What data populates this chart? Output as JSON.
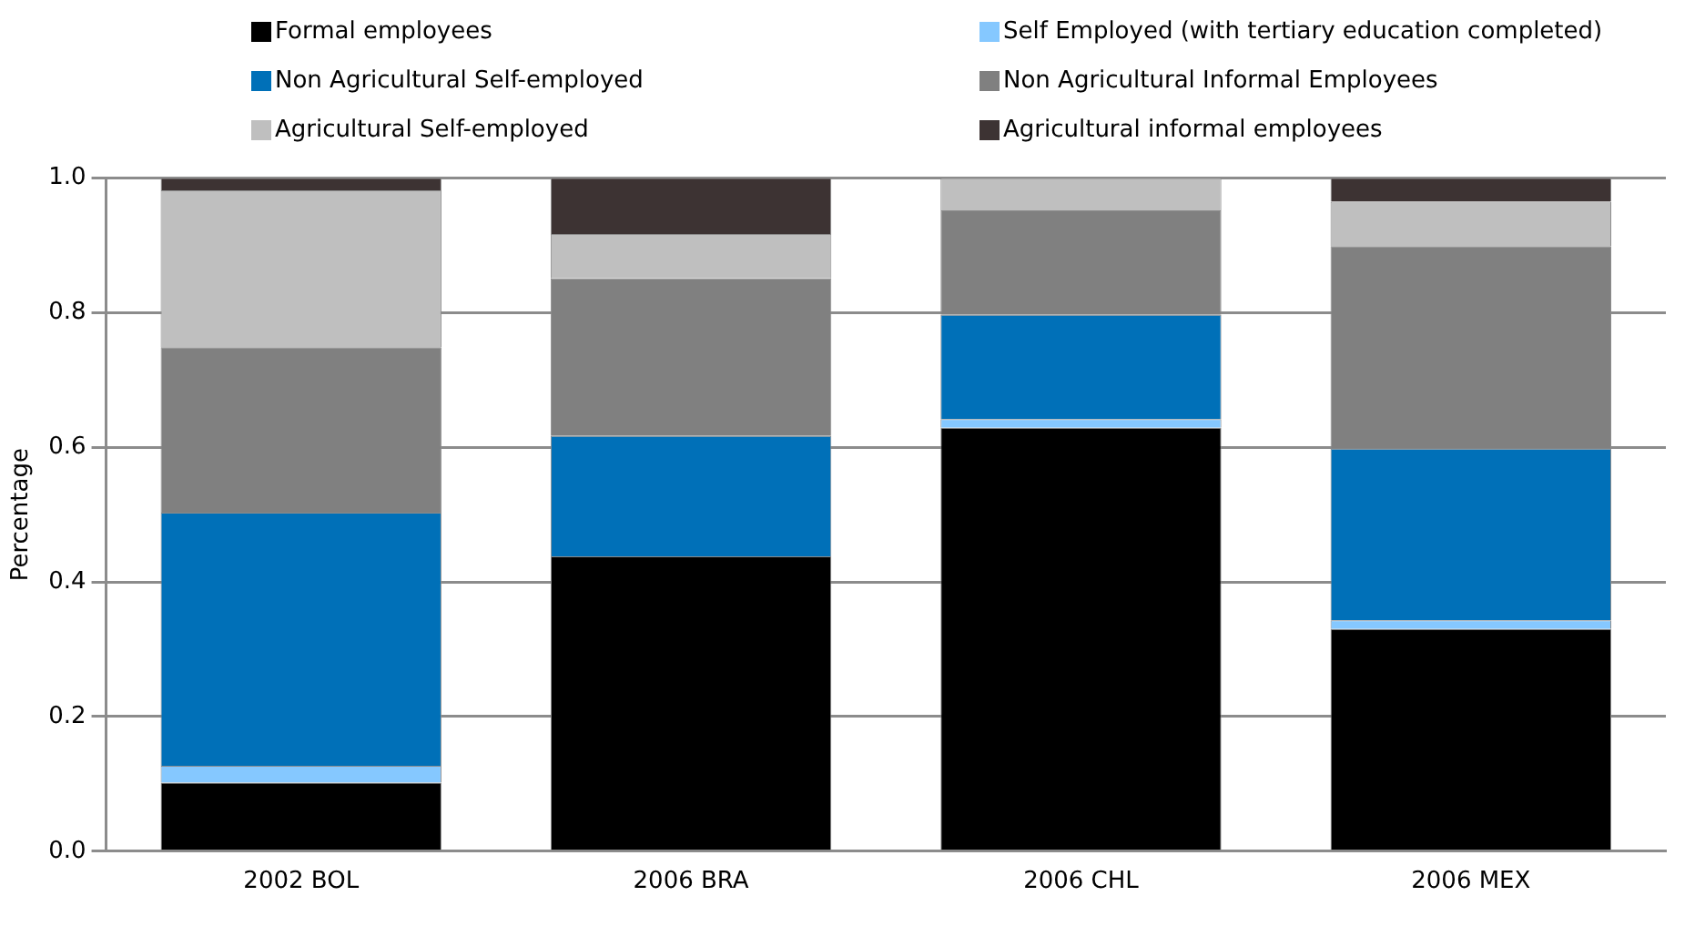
{
  "chart_data": {
    "type": "bar",
    "stacked": true,
    "ylabel": "Percentage",
    "categories": [
      "2002 BOL",
      "2006 BRA",
      "2006 CHL",
      "2006 MEX"
    ],
    "series": [
      {
        "name": "Formal employees",
        "color": "#000000",
        "values": [
          0.102,
          0.438,
          0.629,
          0.33
        ]
      },
      {
        "name": "Self Employed (with tertiary education completed)",
        "color": "#85c8ff",
        "values": [
          0.025,
          0,
          0.013,
          0.013
        ]
      },
      {
        "name": "Non Agricultural Self-employed",
        "color": "#0070b8",
        "values": [
          0.376,
          0.179,
          0.155,
          0.255
        ]
      },
      {
        "name": "Non Agricultural Informal Employees",
        "color": "#808080",
        "values": [
          0.246,
          0.234,
          0.155,
          0.301
        ]
      },
      {
        "name": "Agricultural Self-employed",
        "color": "#bfbfbf",
        "values": [
          0.233,
          0.066,
          0.048,
          0.066
        ]
      },
      {
        "name": "Agricultural informal employees",
        "color": "#3d3333",
        "values": [
          0.018,
          0.083,
          0,
          0.035
        ]
      }
    ],
    "ylim": [
      0,
      1
    ],
    "yticks": [
      {
        "value": 0,
        "label": "0.0"
      },
      {
        "value": 0.2,
        "label": "0.2"
      },
      {
        "value": 0.4,
        "label": "0.4"
      },
      {
        "value": 0.6,
        "label": "0.6"
      },
      {
        "value": 0.8,
        "label": "0.8"
      },
      {
        "value": 1,
        "label": "1.0"
      }
    ],
    "grid": "y",
    "legend": "top"
  }
}
